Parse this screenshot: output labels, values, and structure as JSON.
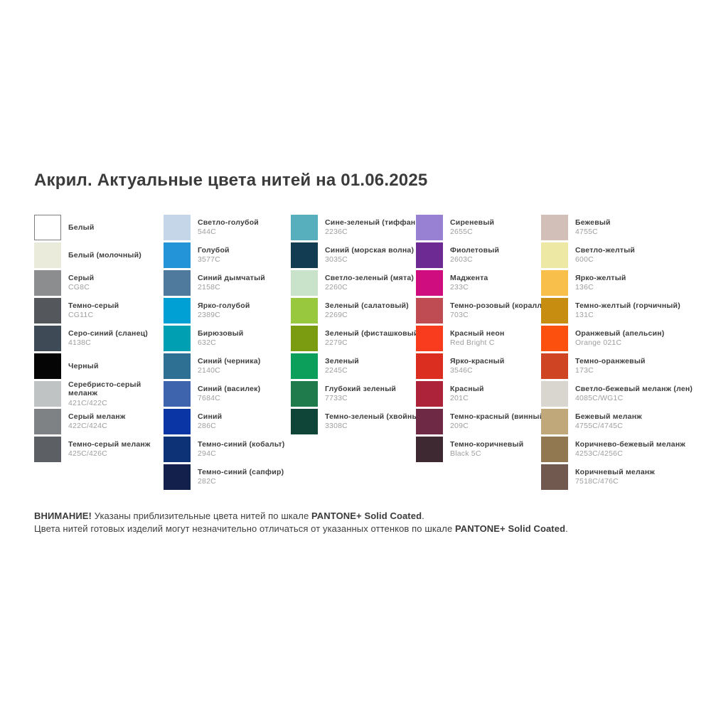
{
  "header": {
    "title": "Акрил. Актуальные цвета нитей на 01.06.2025"
  },
  "palette_meta": {
    "text_dark": "#3d3d3d",
    "code_gray": "#9e9e9e",
    "white_swatch_border": "#7f7f7f",
    "background": "#ffffff"
  },
  "columns": [
    {
      "items": [
        {
          "name": "Белый",
          "code": "",
          "hex": "#ffffff",
          "bordered": true
        },
        {
          "name": "Белый (молочный)",
          "code": "",
          "hex": "#ebebdc"
        },
        {
          "name": "Серый",
          "code": "CG8C",
          "hex": "#8b8d8f"
        },
        {
          "name": "Темно-серый",
          "code": "CG11C",
          "hex": "#54575b"
        },
        {
          "name": "Серо-синий (сланец)",
          "code": "4138C",
          "hex": "#3e4a56"
        },
        {
          "name": "Черный",
          "code": "",
          "hex": "#050505"
        },
        {
          "name": "Серебристо-серый\nмеланж",
          "code": "421C/422C",
          "hex": "#c0c3c4"
        },
        {
          "name": "Серый меланж",
          "code": "422C/424C",
          "hex": "#7f8284"
        },
        {
          "name": "Темно-серый меланж",
          "code": "425C/426C",
          "hex": "#5c6064"
        }
      ]
    },
    {
      "items": [
        {
          "name": "Светло-голубой",
          "code": "544C",
          "hex": "#c4d6e8"
        },
        {
          "name": "Голубой",
          "code": "3577C",
          "hex": "#2394d7"
        },
        {
          "name": "Синий дымчатый",
          "code": "2158C",
          "hex": "#4f7a9d"
        },
        {
          "name": "Ярко-голубой",
          "code": "2389C",
          "hex": "#00a0d4"
        },
        {
          "name": "Бирюзовый",
          "code": "632C",
          "hex": "#009fb2"
        },
        {
          "name": "Синий (черника)",
          "code": "2140C",
          "hex": "#2e7094"
        },
        {
          "name": "Синий (василек)",
          "code": "7684C",
          "hex": "#3f64ae"
        },
        {
          "name": "Синий",
          "code": "286C",
          "hex": "#0935a5"
        },
        {
          "name": "Темно-синий (кобальт)",
          "code": "294C",
          "hex": "#0e3276"
        },
        {
          "name": "Темно-синий (сапфир)",
          "code": "282C",
          "hex": "#12204b"
        }
      ]
    },
    {
      "items": [
        {
          "name": "Сине-зеленый (тиффани)",
          "code": "2236C",
          "hex": "#57aebc"
        },
        {
          "name": "Синий (морская волна)",
          "code": "3035C",
          "hex": "#113c52"
        },
        {
          "name": "Светло-зеленый (мята)",
          "code": "2260C",
          "hex": "#c8e3ca"
        },
        {
          "name": "Зеленый (салатовый)",
          "code": "2269C",
          "hex": "#97c83e"
        },
        {
          "name": "Зеленый (фисташковый)",
          "code": "2279C",
          "hex": "#7b9b11"
        },
        {
          "name": "Зеленый",
          "code": "2245C",
          "hex": "#0c9f5c"
        },
        {
          "name": "Глубокий зеленый",
          "code": "7733C",
          "hex": "#1f7b4b"
        },
        {
          "name": "Темно-зеленый (хвойный)",
          "code": "3308C",
          "hex": "#0f4539"
        }
      ]
    },
    {
      "items": [
        {
          "name": "Сиреневый",
          "code": "2655C",
          "hex": "#9880d3"
        },
        {
          "name": "Фиолетовый",
          "code": "2603C",
          "hex": "#6d2a92"
        },
        {
          "name": "Маджента",
          "code": "233C",
          "hex": "#d00d7e"
        },
        {
          "name": "Темно-розовый (коралл)",
          "code": "703C",
          "hex": "#bf4b53"
        },
        {
          "name": "Красный неон",
          "code": "Red Bright C",
          "hex": "#f93b1e"
        },
        {
          "name": "Ярко-красный",
          "code": "3546C",
          "hex": "#dc2e20"
        },
        {
          "name": "Красный",
          "code": "201C",
          "hex": "#ad2339"
        },
        {
          "name": "Темно-красный (винный)",
          "code": "209C",
          "hex": "#6e2a44"
        },
        {
          "name": "Темно-коричневый",
          "code": "Black 5C",
          "hex": "#3e2831"
        }
      ]
    },
    {
      "items": [
        {
          "name": "Бежевый",
          "code": "4755C",
          "hex": "#d2bfb7"
        },
        {
          "name": "Светло-желтый",
          "code": "600C",
          "hex": "#ede8a3"
        },
        {
          "name": "Ярко-желтый",
          "code": "136C",
          "hex": "#f8c04b"
        },
        {
          "name": "Темно-желтый (горчичный)",
          "code": "131C",
          "hex": "#c78d10"
        },
        {
          "name": "Оранжевый (апельсин)",
          "code": "Orange 021C",
          "hex": "#fc500f"
        },
        {
          "name": "Темно-оранжевый",
          "code": "173C",
          "hex": "#cf4524"
        },
        {
          "name": "Светло-бежевый меланж (лен)",
          "code": "4085C/WG1C",
          "hex": "#d9d6cf"
        },
        {
          "name": "Бежевый меланж",
          "code": "4755C/4745C",
          "hex": "#c1a87b"
        },
        {
          "name": "Коричнево-бежевый меланж",
          "code": "4253C/4256C",
          "hex": "#917850"
        },
        {
          "name": "Коричневый меланж",
          "code": "7518C/476C",
          "hex": "#72594f"
        }
      ]
    }
  ],
  "footer": {
    "warning_bold": "ВНИМАНИЕ!",
    "line1_text": " Указаны приблизительные цвета нитей по шкале ",
    "line1_brand": "PANTONE+ Solid Coated",
    "line1_end": ".",
    "line2_text": "Цвета нитей готовых изделий могут незначительно отличаться от указанных оттенков по шкале ",
    "line2_brand": "PANTONE+ Solid Coated",
    "line2_end": "."
  }
}
